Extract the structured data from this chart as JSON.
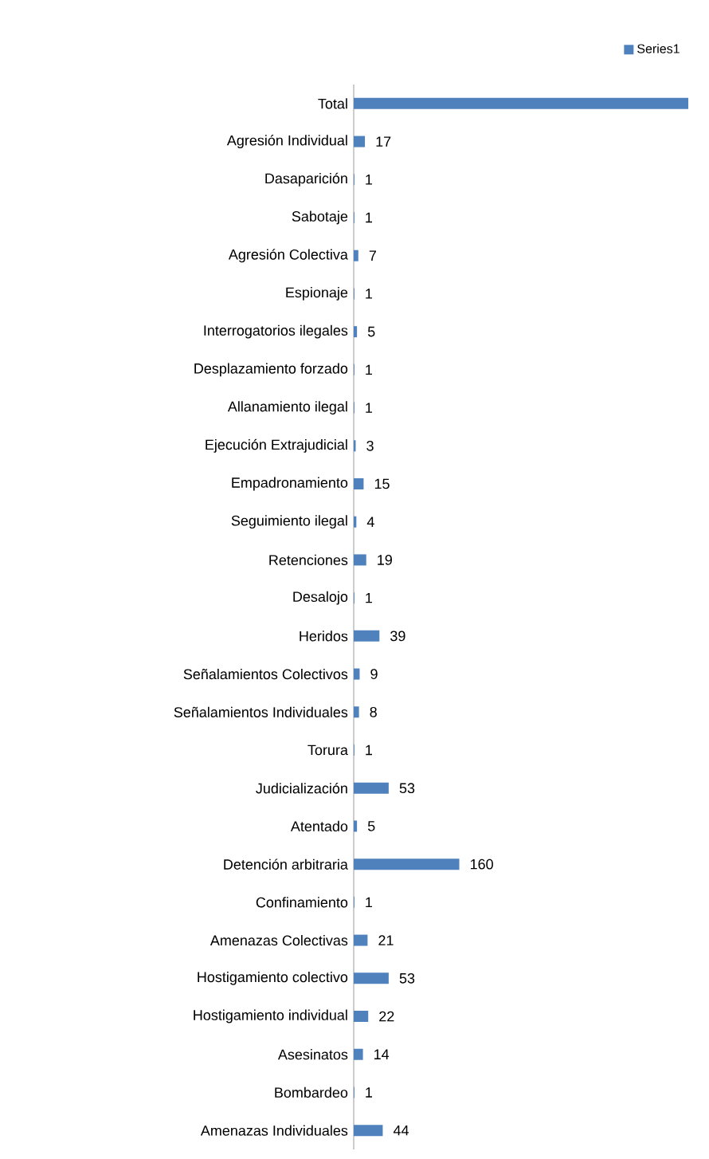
{
  "chart_data": {
    "type": "bar",
    "orientation": "horizontal",
    "legend": "top right",
    "categories": [
      "Total",
      "Agresión Individual",
      "Dasaparición",
      "Sabotaje",
      "Agresión Colectiva",
      "Espionaje",
      "Interrogatorios ilegales",
      "Desplazamiento forzado",
      "Allanamiento ilegal",
      "Ejecución Extrajudicial",
      "Empadronamiento",
      "Seguimiento ilegal",
      "Retenciones",
      "Desalojo",
      "Heridos",
      "Señalamientos Colectivos",
      "Señalamientos Individuales",
      "Torura",
      "Judicialización",
      "Atentado",
      "Detención arbitraria",
      "Confinamiento",
      "Amenazas Colectivas",
      "Hostigamiento colectivo",
      "Hostigamiento individual",
      "Asesinatos",
      "Bombardeo",
      "Amenazas Individuales"
    ],
    "series": [
      {
        "name": "Series1",
        "color": "#4f81bd",
        "values": [
          507,
          17,
          1,
          1,
          7,
          1,
          5,
          1,
          1,
          3,
          15,
          4,
          19,
          1,
          39,
          9,
          8,
          1,
          53,
          5,
          160,
          1,
          21,
          53,
          22,
          14,
          1,
          44
        ],
        "value_labels": [
          null,
          "17",
          "1",
          "1",
          "7",
          "1",
          "5",
          "1",
          "1",
          "3",
          "15",
          "4",
          "19",
          "1",
          "39",
          "9",
          "8",
          "1",
          "53",
          "5",
          "160",
          "1",
          "21",
          "53",
          "22",
          "14",
          "1",
          "44"
        ]
      }
    ]
  }
}
